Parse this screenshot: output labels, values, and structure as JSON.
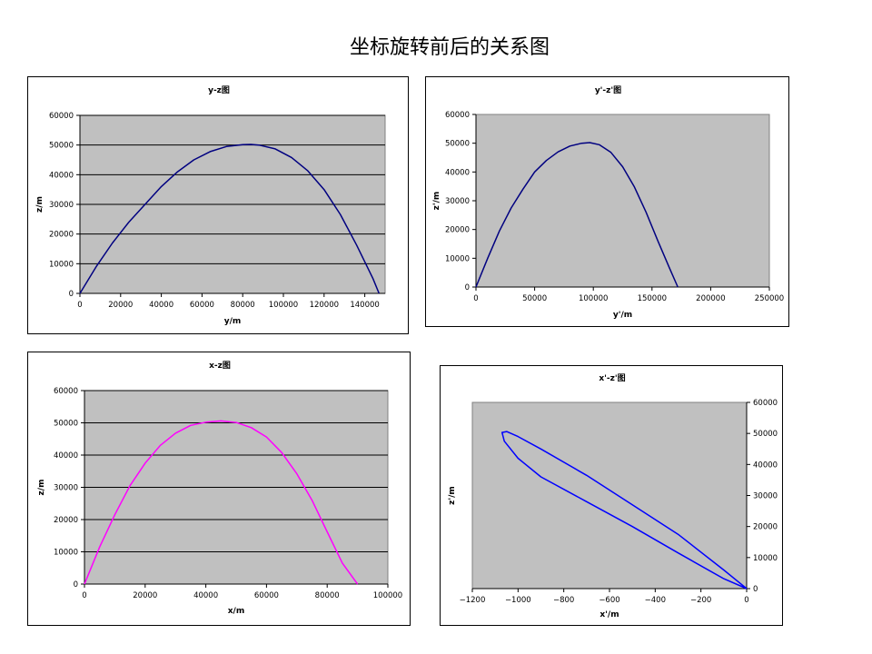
{
  "page": {
    "title": "坐标旋转前后的关系图"
  },
  "chart_data": [
    {
      "type": "line",
      "title": "y-z图",
      "xlabel": "y/m",
      "ylabel": "z/m",
      "xlim": [
        0,
        150000
      ],
      "ylim": [
        0,
        60000
      ],
      "xticks": [
        0,
        20000,
        40000,
        60000,
        80000,
        100000,
        120000,
        140000
      ],
      "yticks": [
        0,
        10000,
        20000,
        30000,
        40000,
        50000,
        60000
      ],
      "y_axis_side": "left",
      "grid": "horizontal",
      "plot_background": "#c0c0c0",
      "series": [
        {
          "color": "#000080",
          "x": [
            0,
            8000,
            16000,
            24000,
            32000,
            40000,
            48000,
            56000,
            64000,
            72000,
            80000,
            84000,
            88000,
            96000,
            104000,
            112000,
            120000,
            128000,
            136000,
            144000,
            147000
          ],
          "y": [
            0,
            9000,
            17000,
            24000,
            30000,
            36000,
            41000,
            45000,
            47800,
            49500,
            50100,
            50200,
            50000,
            48700,
            45800,
            41300,
            35000,
            26600,
            16300,
            5000,
            0
          ]
        }
      ]
    },
    {
      "type": "line",
      "title": "y'-z'图",
      "xlabel": "y'/m",
      "ylabel": "z'/m",
      "xlim": [
        0,
        250000
      ],
      "ylim": [
        0,
        60000
      ],
      "xticks": [
        0,
        50000,
        100000,
        150000,
        200000,
        250000
      ],
      "yticks": [
        0,
        10000,
        20000,
        30000,
        40000,
        50000,
        60000
      ],
      "y_axis_side": "left",
      "grid": "none",
      "plot_background": "#c0c0c0",
      "series": [
        {
          "color": "#000080",
          "x": [
            0,
            10000,
            20000,
            30000,
            40000,
            50000,
            60000,
            70000,
            80000,
            90000,
            97000,
            105000,
            115000,
            125000,
            135000,
            145000,
            155000,
            165000,
            172000
          ],
          "y": [
            0,
            10000,
            19500,
            27500,
            34000,
            40000,
            44000,
            47000,
            49000,
            50000,
            50200,
            49500,
            46800,
            41800,
            34800,
            26000,
            16000,
            6500,
            0
          ]
        }
      ]
    },
    {
      "type": "line",
      "title": "x-z图",
      "xlabel": "x/m",
      "ylabel": "z/m",
      "xlim": [
        0,
        100000
      ],
      "ylim": [
        0,
        60000
      ],
      "xticks": [
        0,
        20000,
        40000,
        60000,
        80000,
        100000
      ],
      "yticks": [
        0,
        10000,
        20000,
        30000,
        40000,
        50000,
        60000
      ],
      "y_axis_side": "left",
      "grid": "horizontal",
      "plot_background": "#c0c0c0",
      "series": [
        {
          "color": "#ff00ff",
          "x": [
            0,
            5000,
            10000,
            15000,
            20000,
            25000,
            30000,
            35000,
            40000,
            45000,
            50000,
            55000,
            60000,
            65000,
            70000,
            75000,
            80000,
            85000,
            90000
          ],
          "y": [
            0,
            11500,
            21500,
            30500,
            37500,
            43000,
            46800,
            49200,
            50200,
            50600,
            50100,
            48500,
            45600,
            40800,
            34200,
            26000,
            16200,
            6500,
            0
          ]
        }
      ]
    },
    {
      "type": "line",
      "title": "x'-z'图",
      "xlabel": "x'/m",
      "ylabel": "z'/m",
      "xlim": [
        -1200,
        0
      ],
      "ylim": [
        0,
        60000
      ],
      "xticks": [
        -1200,
        -1000,
        -800,
        -600,
        -400,
        -200,
        0
      ],
      "yticks": [
        0,
        10000,
        20000,
        30000,
        40000,
        50000,
        60000
      ],
      "y_axis_side": "right",
      "grid": "none",
      "plot_background": "#c0c0c0",
      "series": [
        {
          "color": "#0000ff",
          "x": [
            0,
            -100,
            -300,
            -500,
            -700,
            -900,
            -1000,
            -1060,
            -1070,
            -1050,
            -1000,
            -900,
            -700,
            -500,
            -300,
            -100,
            0
          ],
          "y": [
            0,
            3200,
            11500,
            20000,
            28000,
            36000,
            42000,
            47500,
            50300,
            50600,
            49000,
            45000,
            36500,
            27000,
            17500,
            6000,
            0
          ]
        }
      ]
    }
  ]
}
